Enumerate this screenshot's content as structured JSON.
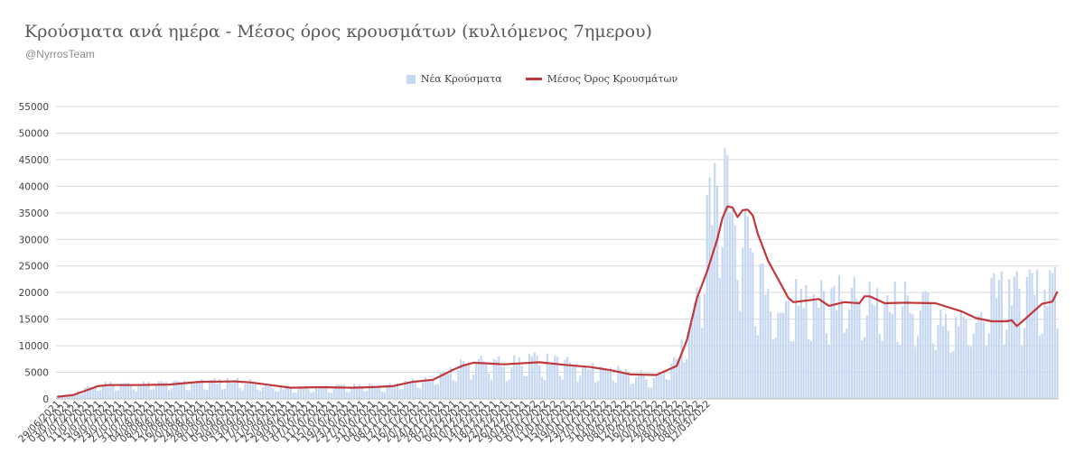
{
  "title": "Κρούσματα ανά ημέρα - Μέσος όρος κρουσμάτων (κυλιόμενος 7ημερου)",
  "subtitle": "@NyrrosTeam",
  "legend": {
    "bars": "Νέα Κρούσματα",
    "line": "Μέσος Όρος Κρουσμάτων"
  },
  "colors": {
    "bars": "#c5d7f1",
    "line": "#c0383b",
    "grid": "#d9d9d9"
  },
  "chart_data": {
    "type": "bar+line",
    "ylim": [
      0,
      55000
    ],
    "yticks": [
      0,
      5000,
      10000,
      15000,
      20000,
      25000,
      30000,
      35000,
      40000,
      45000,
      50000,
      55000
    ],
    "grid": true,
    "legend_position": "top",
    "x_labels": [
      "29/06/2021",
      "03/07/2021",
      "07/07/2021",
      "11/07/2021",
      "15/07/2021",
      "19/07/2021",
      "23/07/2021",
      "27/07/2021",
      "31/07/2021",
      "04/08/2021",
      "08/08/2021",
      "12/08/2021",
      "16/08/2021",
      "20/08/2021",
      "24/08/2021",
      "28/08/2021",
      "01/09/2021",
      "05/09/2021",
      "09/09/2021",
      "13/09/2021",
      "17/09/2021",
      "21/09/2021",
      "25/09/2021",
      "29/09/2021",
      "03/10/2021",
      "07/10/2021",
      "11/10/2021",
      "15/10/2021",
      "19/10/2021",
      "23/10/2021",
      "27/10/2021",
      "31/10/2021",
      "04/11/2021",
      "08/11/2021",
      "12/11/2021",
      "16/11/2021",
      "20/11/2021",
      "24/11/2021",
      "28/11/2021",
      "02/12/2021",
      "06/12/2021",
      "10/12/2021",
      "14/12/2021",
      "18/12/2021",
      "22/12/2021",
      "26/12/2021",
      "30/12/2021",
      "03/01/2022",
      "07/01/2022",
      "11/01/2022",
      "15/01/2022",
      "19/01/2022",
      "23/01/2022",
      "27/01/2022",
      "31/01/2022",
      "04/02/2022",
      "08/02/2022",
      "12/02/2022",
      "16/02/2022",
      "20/02/2022",
      "24/02/2022",
      "28/02/2022",
      "04/03/2022",
      "08/03/2022",
      "12/03/2022"
    ],
    "series": [
      {
        "name": "Νέα Κρούσματα",
        "type": "bar",
        "anchors": [
          [
            0,
            500
          ],
          [
            6,
            900
          ],
          [
            12,
            2000
          ],
          [
            16,
            2600
          ],
          [
            20,
            2800
          ],
          [
            30,
            2700
          ],
          [
            44,
            2900
          ],
          [
            56,
            3100
          ],
          [
            70,
            3400
          ],
          [
            76,
            3000
          ],
          [
            84,
            2200
          ],
          [
            92,
            1900
          ],
          [
            104,
            2200
          ],
          [
            116,
            2300
          ],
          [
            124,
            2400
          ],
          [
            132,
            2500
          ],
          [
            140,
            3200
          ],
          [
            148,
            3700
          ],
          [
            156,
            5400
          ],
          [
            160,
            6800
          ],
          [
            164,
            7200
          ],
          [
            176,
            6500
          ],
          [
            190,
            7200
          ],
          [
            200,
            6500
          ],
          [
            210,
            6200
          ],
          [
            218,
            5400
          ],
          [
            226,
            4600
          ],
          [
            236,
            4100
          ],
          [
            244,
            6800
          ],
          [
            250,
            14000
          ],
          [
            254,
            25000
          ],
          [
            258,
            37000
          ],
          [
            262,
            45000
          ],
          [
            266,
            35000
          ],
          [
            270,
            33000
          ],
          [
            274,
            25000
          ],
          [
            280,
            19000
          ],
          [
            288,
            18500
          ],
          [
            300,
            19000
          ],
          [
            310,
            19500
          ],
          [
            320,
            18000
          ],
          [
            330,
            18500
          ],
          [
            338,
            17500
          ],
          [
            346,
            16000
          ],
          [
            352,
            14000
          ],
          [
            358,
            16000
          ],
          [
            362,
            12000
          ],
          [
            366,
            18000
          ],
          [
            370,
            21000
          ],
          [
            374,
            20000
          ]
        ]
      },
      {
        "name": "Μέσος Όρος Κρουσμάτων",
        "type": "line",
        "points": [
          [
            0,
            400
          ],
          [
            6,
            700
          ],
          [
            12,
            1700
          ],
          [
            16,
            2400
          ],
          [
            20,
            2600
          ],
          [
            30,
            2600
          ],
          [
            44,
            2700
          ],
          [
            56,
            3200
          ],
          [
            70,
            3300
          ],
          [
            76,
            3100
          ],
          [
            84,
            2600
          ],
          [
            92,
            2100
          ],
          [
            104,
            2200
          ],
          [
            116,
            2100
          ],
          [
            124,
            2200
          ],
          [
            132,
            2400
          ],
          [
            140,
            3200
          ],
          [
            148,
            3600
          ],
          [
            156,
            5500
          ],
          [
            160,
            6300
          ],
          [
            164,
            6800
          ],
          [
            176,
            6500
          ],
          [
            190,
            6900
          ],
          [
            200,
            6400
          ],
          [
            210,
            6000
          ],
          [
            218,
            5400
          ],
          [
            226,
            4600
          ],
          [
            236,
            4500
          ],
          [
            244,
            6200
          ],
          [
            248,
            11000
          ],
          [
            252,
            19000
          ],
          [
            256,
            24000
          ],
          [
            260,
            30000
          ],
          [
            262,
            34000
          ],
          [
            264,
            36200
          ],
          [
            266,
            36000
          ],
          [
            268,
            34200
          ],
          [
            270,
            35500
          ],
          [
            272,
            35600
          ],
          [
            274,
            34500
          ],
          [
            276,
            31000
          ],
          [
            280,
            26000
          ],
          [
            284,
            22500
          ],
          [
            288,
            19000
          ],
          [
            290,
            18200
          ],
          [
            300,
            18800
          ],
          [
            304,
            17500
          ],
          [
            310,
            18200
          ],
          [
            316,
            18000
          ],
          [
            318,
            19300
          ],
          [
            320,
            19300
          ],
          [
            326,
            18000
          ],
          [
            334,
            18100
          ],
          [
            346,
            18000
          ],
          [
            356,
            16500
          ],
          [
            362,
            15200
          ],
          [
            368,
            14600
          ],
          [
            374,
            14600
          ],
          [
            376,
            14800
          ],
          [
            378,
            13700
          ],
          [
            380,
            14500
          ],
          [
            384,
            16200
          ],
          [
            388,
            17900
          ],
          [
            392,
            18300
          ],
          [
            394,
            20200
          ]
        ]
      }
    ]
  }
}
